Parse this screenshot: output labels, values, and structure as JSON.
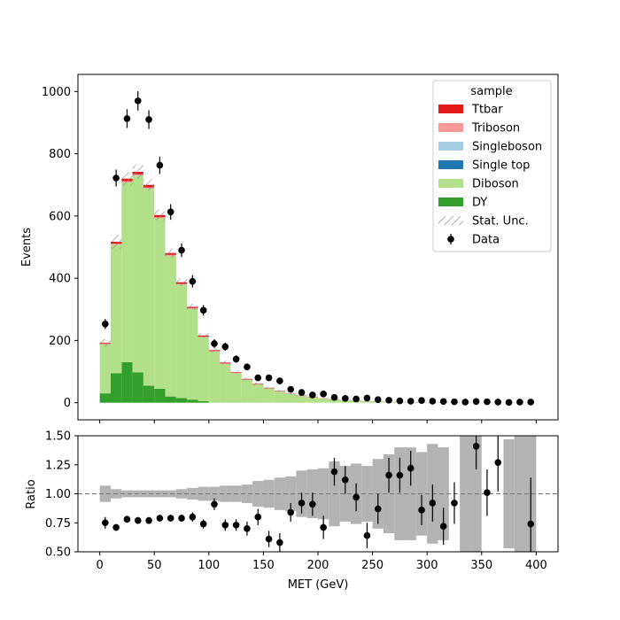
{
  "chart_data": {
    "type": "histogram-stack-with-ratio",
    "xlabel": "MET (GeV)",
    "ylabel_main": "Events",
    "ylabel_ratio": "Ratio",
    "xlim": [
      -20,
      420
    ],
    "ylim_main": [
      -55,
      1055
    ],
    "ylim_ratio": [
      0.5,
      1.5
    ],
    "x_ticks": [
      0,
      50,
      100,
      150,
      200,
      250,
      300,
      350,
      400
    ],
    "y_ticks_main": [
      0,
      200,
      400,
      600,
      800,
      1000
    ],
    "y_ticks_ratio": [
      0.5,
      0.75,
      1.0,
      1.25,
      1.5
    ],
    "y_ticks_ratio_labels": [
      "0.50",
      "0.75",
      "1.00",
      "1.25",
      "1.50"
    ],
    "reference_line": 1.0,
    "bin_edges": [
      0,
      10,
      20,
      30,
      40,
      50,
      60,
      70,
      80,
      90,
      100,
      110,
      120,
      130,
      140,
      150,
      160,
      170,
      180,
      190,
      200,
      210,
      220,
      230,
      240,
      250,
      260,
      270,
      280,
      290,
      300,
      310,
      320,
      330,
      340,
      350,
      360,
      370,
      380,
      390,
      400
    ],
    "legend": {
      "title": "sample",
      "position": "upper-right",
      "entries": [
        {
          "label": "Ttbar",
          "kind": "patch",
          "color": "#e31a1c"
        },
        {
          "label": "Triboson",
          "kind": "patch",
          "color": "#fb9a99"
        },
        {
          "label": "Singleboson",
          "kind": "patch",
          "color": "#a6cee3"
        },
        {
          "label": "Single top",
          "kind": "patch",
          "color": "#1f78b4"
        },
        {
          "label": "Diboson",
          "kind": "patch",
          "color": "#b2df8a"
        },
        {
          "label": "DY",
          "kind": "patch",
          "color": "#33a02c"
        },
        {
          "label": "Stat. Unc.",
          "kind": "hatch",
          "color": "#808080"
        },
        {
          "label": "Data",
          "kind": "errorbar",
          "color": "#000000"
        }
      ]
    },
    "series": [
      {
        "name": "DY",
        "color": "#33a02c",
        "values": [
          30,
          95,
          130,
          98,
          55,
          45,
          20,
          15,
          10,
          5,
          0,
          0,
          0,
          0,
          0,
          0,
          0,
          0,
          0,
          0,
          0,
          0,
          0,
          0,
          0,
          0,
          0,
          0,
          0,
          0,
          0,
          0,
          0,
          0,
          0,
          0,
          0,
          0,
          0,
          0
        ]
      },
      {
        "name": "Diboson",
        "color": "#b2df8a",
        "values": [
          158,
          413,
          578,
          632,
          633,
          548,
          452,
          365,
          292,
          206,
          165,
          125,
          95,
          74,
          58,
          46,
          36,
          28,
          22,
          17,
          13,
          10,
          8,
          6,
          5,
          4,
          3,
          2.5,
          2,
          1.6,
          1.3,
          1,
          0.8,
          0.6,
          0.5,
          0.4,
          0.3,
          0.2,
          0.2,
          0.1
        ]
      },
      {
        "name": "Single top",
        "color": "#1f78b4",
        "values": [
          0,
          0,
          0,
          0,
          0,
          0,
          0,
          0,
          0,
          0,
          0,
          0,
          0,
          0,
          0,
          0,
          0,
          0,
          0,
          0,
          0,
          0,
          0,
          0,
          0,
          0,
          0,
          0,
          0,
          0,
          0,
          0,
          0,
          0,
          0,
          0,
          0,
          0,
          0,
          0
        ]
      },
      {
        "name": "Singleboson",
        "color": "#a6cee3",
        "values": [
          0,
          0,
          0,
          0,
          0,
          0,
          0,
          0,
          0,
          0,
          0,
          0,
          0,
          0,
          0,
          0,
          0,
          0,
          0,
          0,
          0,
          0,
          0,
          0,
          0,
          0,
          0,
          0,
          0,
          0,
          0,
          0,
          0,
          0,
          0,
          0,
          0,
          0,
          0,
          0
        ]
      },
      {
        "name": "Triboson",
        "color": "#fb9a99",
        "values": [
          1,
          3,
          4,
          4,
          4,
          3,
          3,
          2,
          2,
          1,
          1,
          1,
          1,
          0.5,
          0.5,
          0.5,
          0.3,
          0.3,
          0.2,
          0.2,
          0.1,
          0.1,
          0.1,
          0.1,
          0,
          0,
          0,
          0,
          0,
          0,
          0,
          0,
          0,
          0,
          0,
          0,
          0,
          0,
          0,
          0
        ]
      },
      {
        "name": "Ttbar",
        "color": "#e31a1c",
        "values": [
          3,
          6,
          8,
          8,
          8,
          7,
          6,
          5,
          4,
          4,
          3,
          3,
          2,
          2,
          2,
          1.5,
          1.5,
          1,
          1,
          1,
          0.8,
          0.6,
          0.5,
          0.4,
          0.3,
          0.3,
          0.2,
          0.2,
          0.2,
          0.1,
          0.1,
          0.1,
          0.1,
          0,
          0,
          0,
          0,
          0,
          0,
          0
        ]
      }
    ],
    "stat_unc": [
      12,
      22,
      22,
      22,
      18,
      16,
      14,
      12,
      10,
      8,
      7,
      6,
      5,
      4,
      4,
      3,
      3,
      2.5,
      2,
      2,
      1.5,
      1.5,
      1.2,
      1,
      1,
      1,
      0.8,
      0.8,
      0.6,
      0.5,
      0.5,
      0.4,
      0.4,
      0.3,
      0.3,
      0.3,
      0.2,
      0.2,
      0.2,
      0.2
    ],
    "data": {
      "x": [
        5,
        15,
        25,
        35,
        45,
        55,
        65,
        75,
        85,
        95,
        105,
        115,
        125,
        135,
        145,
        155,
        165,
        175,
        185,
        195,
        205,
        215,
        225,
        235,
        245,
        255,
        265,
        275,
        285,
        295,
        305,
        315,
        325,
        335,
        345,
        355,
        365,
        375,
        385,
        395
      ],
      "y": [
        253,
        722,
        913,
        970,
        910,
        763,
        613,
        490,
        390,
        297,
        190,
        180,
        140,
        115,
        80,
        80,
        70,
        43,
        33,
        25,
        28,
        17,
        14,
        12,
        15,
        10,
        8,
        6,
        5,
        7,
        5,
        4,
        3,
        2,
        4,
        3,
        2,
        1,
        2,
        2
      ],
      "yerr": [
        16,
        27,
        30,
        31,
        30,
        28,
        25,
        22,
        20,
        17,
        14,
        13,
        12,
        11,
        9,
        9,
        8,
        7,
        6,
        5,
        5,
        4,
        4,
        3.5,
        4,
        3,
        3,
        2.5,
        2.2,
        2.6,
        2.2,
        2,
        1.7,
        1.4,
        2,
        1.7,
        1.4,
        1,
        1.4,
        1.4
      ]
    },
    "ratio": {
      "x": [
        5,
        15,
        25,
        35,
        45,
        55,
        65,
        75,
        85,
        95,
        105,
        115,
        125,
        135,
        145,
        155,
        165,
        175,
        185,
        195,
        205,
        215,
        225,
        235,
        245,
        255,
        265,
        275,
        285,
        295,
        305,
        315,
        325,
        345,
        355,
        365,
        395
      ],
      "y": [
        0.75,
        0.71,
        0.78,
        0.77,
        0.77,
        0.79,
        0.79,
        0.79,
        0.8,
        0.74,
        0.91,
        0.73,
        0.73,
        0.7,
        0.8,
        0.61,
        0.58,
        0.84,
        0.92,
        0.91,
        0.71,
        1.19,
        1.12,
        0.97,
        0.64,
        0.87,
        1.16,
        1.16,
        1.22,
        0.86,
        0.92,
        0.72,
        0.92,
        1.41,
        1.01,
        1.27,
        0.74
      ],
      "yerr": [
        0.05,
        0.03,
        0.03,
        0.03,
        0.03,
        0.03,
        0.03,
        0.03,
        0.04,
        0.04,
        0.05,
        0.05,
        0.05,
        0.06,
        0.07,
        0.07,
        0.08,
        0.08,
        0.09,
        0.1,
        0.1,
        0.12,
        0.12,
        0.12,
        0.11,
        0.13,
        0.15,
        0.15,
        0.15,
        0.13,
        0.16,
        0.16,
        0.18,
        0.2,
        0.2,
        0.25,
        0.4
      ]
    },
    "ratio_unc_band": {
      "low": [
        0.93,
        0.96,
        0.97,
        0.97,
        0.97,
        0.97,
        0.97,
        0.96,
        0.95,
        0.94,
        0.94,
        0.93,
        0.93,
        0.92,
        0.89,
        0.88,
        0.86,
        0.85,
        0.8,
        0.79,
        0.78,
        0.72,
        0.76,
        0.74,
        0.76,
        0.7,
        0.66,
        0.6,
        0.6,
        0.64,
        0.57,
        0.6,
        null,
        0.5,
        0.5,
        null,
        null,
        0.53,
        0.5,
        0.5
      ],
      "high": [
        1.07,
        1.04,
        1.03,
        1.03,
        1.03,
        1.03,
        1.03,
        1.04,
        1.05,
        1.06,
        1.06,
        1.07,
        1.07,
        1.08,
        1.11,
        1.12,
        1.14,
        1.15,
        1.2,
        1.21,
        1.22,
        1.28,
        1.24,
        1.26,
        1.24,
        1.3,
        1.34,
        1.4,
        1.4,
        1.36,
        1.43,
        1.4,
        null,
        1.5,
        1.5,
        null,
        null,
        1.47,
        1.5,
        1.5
      ]
    }
  }
}
